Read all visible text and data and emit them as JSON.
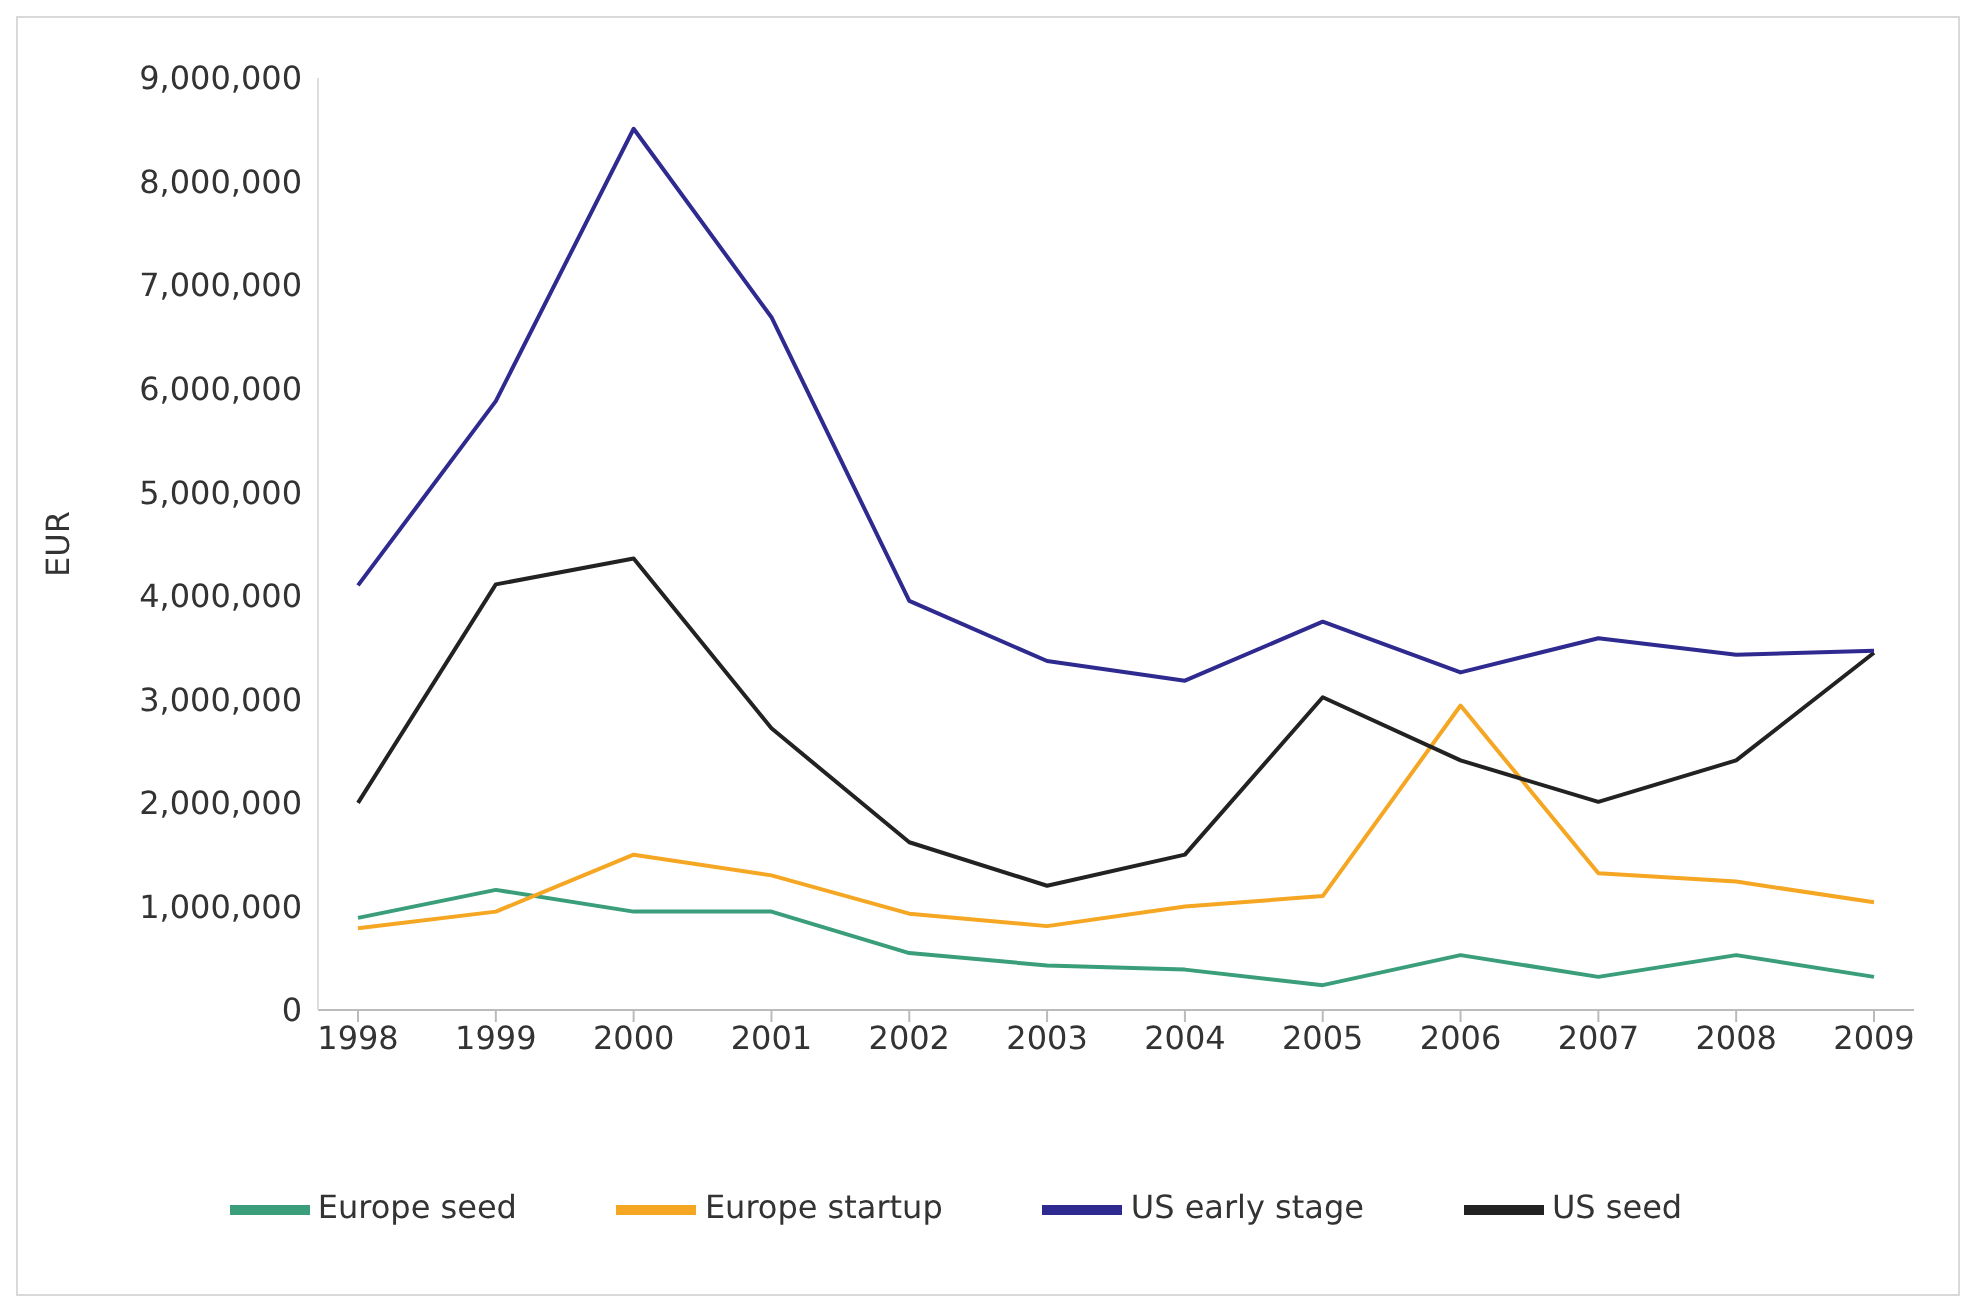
{
  "chart_data": {
    "type": "line",
    "ylabel": "EUR",
    "categories": [
      "1998",
      "1999",
      "2000",
      "2001",
      "2002",
      "2003",
      "2004",
      "2005",
      "2006",
      "2007",
      "2008",
      "2009"
    ],
    "series": [
      {
        "name": "Europe seed",
        "color": "#3a9e7a",
        "values": [
          890000,
          1160000,
          950000,
          950000,
          550000,
          430000,
          390000,
          240000,
          530000,
          320000,
          530000,
          320000
        ]
      },
      {
        "name": "Europe startup",
        "color": "#f5a623",
        "values": [
          790000,
          950000,
          1500000,
          1300000,
          930000,
          810000,
          1000000,
          1100000,
          2940000,
          1320000,
          1240000,
          1040000
        ]
      },
      {
        "name": "US seed",
        "color": "#222222",
        "values": [
          2000000,
          4110000,
          4360000,
          2720000,
          1620000,
          1200000,
          1500000,
          3020000,
          2410000,
          2010000,
          2410000,
          3450000
        ]
      },
      {
        "name": "US early stage",
        "color": "#2e2a8f",
        "values": [
          4100000,
          5880000,
          8510000,
          6690000,
          3950000,
          3370000,
          3180000,
          3750000,
          3260000,
          3590000,
          3430000,
          3470000
        ]
      }
    ],
    "ylim": [
      0,
      9000000
    ],
    "yticks": [
      {
        "value": 0,
        "label": "0"
      },
      {
        "value": 1000000,
        "label": "1,000,000"
      },
      {
        "value": 2000000,
        "label": "2,000,000"
      },
      {
        "value": 3000000,
        "label": "3,000,000"
      },
      {
        "value": 4000000,
        "label": "4,000,000"
      },
      {
        "value": 5000000,
        "label": "5,000,000"
      },
      {
        "value": 6000000,
        "label": "6,000,000"
      },
      {
        "value": 7000000,
        "label": "7,000,000"
      },
      {
        "value": 8000000,
        "label": "8,000,000"
      },
      {
        "value": 9000000,
        "label": "9,000,000"
      }
    ],
    "grid": false,
    "legend": "bottom",
    "marker": "none",
    "line_style": "solid"
  }
}
